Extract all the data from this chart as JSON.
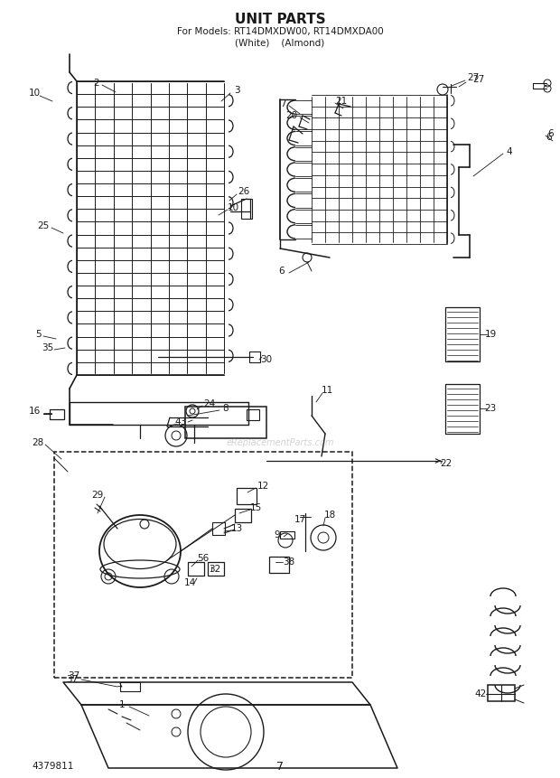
{
  "title": "UNIT PARTS",
  "subtitle": "For Models: RT14DMXDW00, RT14DMXDA00",
  "subtitle2": "(White)    (Almond)",
  "page_number": "7",
  "part_number": "4379811",
  "bg": "#ffffff",
  "lc": "#1a1a1a",
  "title_fontsize": 11,
  "subtitle_fontsize": 7.5,
  "label_fontsize": 7.5,
  "fig_width": 6.2,
  "fig_height": 8.61,
  "dpi": 100
}
